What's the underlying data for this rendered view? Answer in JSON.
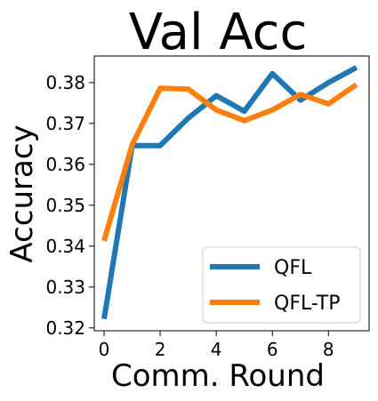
{
  "chart_data": {
    "type": "line",
    "title": "Val Acc",
    "xlabel": "Comm. Round",
    "ylabel": "Accuracy",
    "xlim": [
      -0.35,
      9.45
    ],
    "ylim": [
      0.3193,
      0.3865
    ],
    "xticks": [
      0,
      2,
      4,
      6,
      8
    ],
    "yticks": [
      0.32,
      0.33,
      0.34,
      0.35,
      0.36,
      0.37,
      0.38
    ],
    "x": [
      0,
      1,
      2,
      3,
      4,
      5,
      6,
      7,
      8,
      9
    ],
    "series": [
      {
        "name": "QFL",
        "color": "#1f77b4",
        "values": [
          0.3222,
          0.3646,
          0.3646,
          0.3713,
          0.3768,
          0.373,
          0.3822,
          0.3757,
          0.38,
          0.3837
        ]
      },
      {
        "name": "QFL-TP",
        "color": "#ff7f0e",
        "values": [
          0.3413,
          0.3648,
          0.3786,
          0.3784,
          0.3733,
          0.3707,
          0.3733,
          0.3771,
          0.3748,
          0.3795
        ]
      }
    ],
    "legend_position": "lower-right",
    "grid": false
  }
}
